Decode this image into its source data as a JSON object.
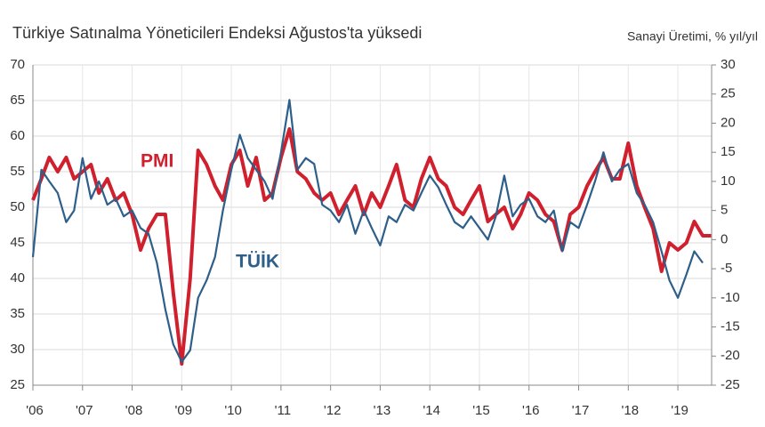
{
  "chart_data": {
    "type": "line",
    "title": "Türkiye Satınalma Yöneticileri Endeksi Ağustos'ta yüksedi",
    "y2_label": "Sanayi Üretimi, % yıl/yıl",
    "annotations": [
      "PMI",
      "TÜİK"
    ],
    "x": [
      2006,
      2006.17,
      2006.33,
      2006.5,
      2006.67,
      2006.83,
      2007,
      2007.17,
      2007.33,
      2007.5,
      2007.67,
      2007.83,
      2008,
      2008.17,
      2008.33,
      2008.5,
      2008.67,
      2008.83,
      2009,
      2009.17,
      2009.33,
      2009.5,
      2009.67,
      2009.83,
      2010,
      2010.17,
      2010.33,
      2010.5,
      2010.67,
      2010.83,
      2011,
      2011.17,
      2011.33,
      2011.5,
      2011.67,
      2011.83,
      2012,
      2012.17,
      2012.33,
      2012.5,
      2012.67,
      2012.83,
      2013,
      2013.17,
      2013.33,
      2013.5,
      2013.67,
      2013.83,
      2014,
      2014.17,
      2014.33,
      2014.5,
      2014.67,
      2014.83,
      2015,
      2015.17,
      2015.33,
      2015.5,
      2015.67,
      2015.83,
      2016,
      2016.17,
      2016.33,
      2016.5,
      2016.67,
      2016.83,
      2017,
      2017.17,
      2017.33,
      2017.5,
      2017.67,
      2017.83,
      2018,
      2018.17,
      2018.33,
      2018.5,
      2018.67,
      2018.83,
      2019,
      2019.17,
      2019.33,
      2019.5,
      2019.67
    ],
    "series": [
      {
        "name": "PMI",
        "color": "#d0202e",
        "axis": "y",
        "values": [
          51,
          54,
          57,
          55,
          57,
          54,
          55,
          56,
          52,
          54,
          51,
          52,
          49,
          44,
          47,
          49,
          49,
          38,
          28,
          40,
          58,
          56,
          53,
          51,
          56,
          58,
          53,
          57,
          51,
          52,
          57,
          61,
          55,
          54,
          52,
          51,
          52,
          49,
          51,
          53,
          49,
          52,
          50,
          53,
          56,
          51,
          50,
          54,
          57,
          54,
          53,
          50,
          49,
          51,
          53,
          48,
          49,
          50,
          47,
          49,
          52,
          51,
          49,
          48,
          44,
          49,
          50,
          53,
          55,
          57,
          54,
          54,
          59,
          53,
          50,
          47,
          41,
          45,
          44,
          45,
          48,
          46,
          46
        ]
      },
      {
        "name": "TÜİK",
        "color": "#2d5f8a",
        "axis": "y2",
        "values": [
          -3,
          12,
          10,
          8,
          3,
          5,
          14,
          7,
          10,
          6,
          7,
          4,
          5,
          2,
          1,
          -4,
          -12,
          -18,
          -21,
          -19,
          -10,
          -7,
          -3,
          5,
          12,
          18,
          14,
          12,
          10,
          7,
          15,
          24,
          12,
          14,
          13,
          6,
          5,
          3,
          6,
          1,
          5,
          2,
          -1,
          4,
          3,
          6,
          5,
          8,
          11,
          9,
          6,
          3,
          2,
          4,
          2,
          0,
          4,
          11,
          4,
          6,
          7,
          4,
          3,
          5,
          -2,
          3,
          2,
          6,
          10,
          15,
          10,
          12,
          13,
          8,
          6,
          3,
          -2,
          -7,
          -10,
          -6,
          -2,
          -4,
          null
        ]
      }
    ],
    "xlim": [
      2006,
      2019.68
    ],
    "xticks": [
      {
        "value": 2006,
        "label": "'06"
      },
      {
        "value": 2007,
        "label": "'07"
      },
      {
        "value": 2008,
        "label": "'08"
      },
      {
        "value": 2009,
        "label": "'09"
      },
      {
        "value": 2010,
        "label": "'10"
      },
      {
        "value": 2011,
        "label": "'11"
      },
      {
        "value": 2012,
        "label": "'12"
      },
      {
        "value": 2013,
        "label": "'13"
      },
      {
        "value": 2014,
        "label": "'14"
      },
      {
        "value": 2015,
        "label": "'15"
      },
      {
        "value": 2016,
        "label": "'16"
      },
      {
        "value": 2017,
        "label": "'17"
      },
      {
        "value": 2018,
        "label": "'18"
      },
      {
        "value": 2019,
        "label": "'19"
      }
    ],
    "ylim": [
      25,
      70
    ],
    "yticks": [
      25,
      30,
      35,
      40,
      45,
      50,
      55,
      60,
      65,
      70
    ],
    "y2lim": [
      -25,
      30
    ],
    "y2ticks": [
      -25,
      -20,
      -15,
      -10,
      -5,
      0,
      5,
      10,
      15,
      20,
      25,
      30
    ],
    "grid": true
  }
}
